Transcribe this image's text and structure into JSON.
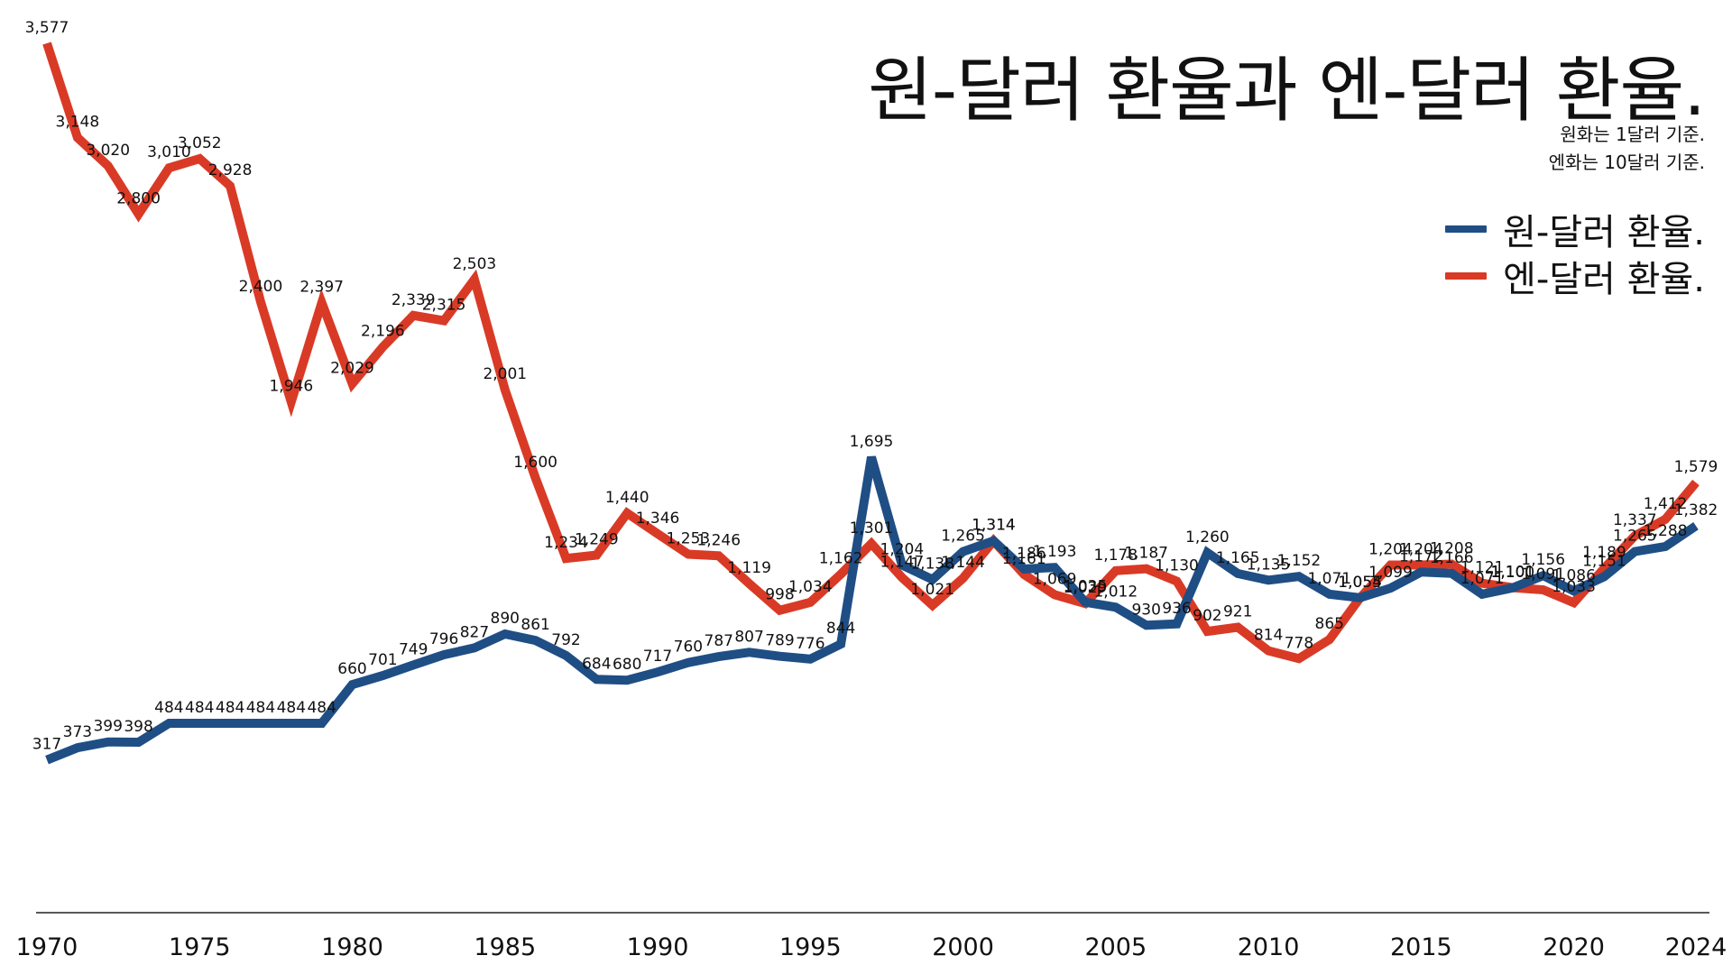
{
  "chart_data": {
    "type": "line",
    "title": "원-달러 환율과 엔-달러 환율.",
    "subtitle_lines": [
      "원화는 1달러 기준.",
      "엔화는 10달러 기준."
    ],
    "x": [
      1970,
      1971,
      1972,
      1973,
      1974,
      1975,
      1976,
      1977,
      1978,
      1979,
      1980,
      1981,
      1982,
      1983,
      1984,
      1985,
      1986,
      1987,
      1988,
      1989,
      1990,
      1991,
      1992,
      1993,
      1994,
      1995,
      1996,
      1997,
      1998,
      1999,
      2000,
      2001,
      2002,
      2003,
      2004,
      2005,
      2006,
      2007,
      2008,
      2009,
      2010,
      2011,
      2012,
      2013,
      2014,
      2015,
      2016,
      2017,
      2018,
      2019,
      2020,
      2021,
      2022,
      2023,
      2024
    ],
    "xticks": [
      1970,
      1975,
      1980,
      1985,
      1990,
      1995,
      2000,
      2005,
      2010,
      2015,
      2020,
      2024
    ],
    "ylim": [
      0,
      3577
    ],
    "grid": false,
    "legend_position": "top-right",
    "series": [
      {
        "name": "원-달러 환율.",
        "color": "#1f4e85",
        "values": [
          317,
          373,
          399,
          398,
          484,
          484,
          484,
          484,
          484,
          484,
          660,
          701,
          749,
          796,
          827,
          890,
          861,
          792,
          684,
          680,
          717,
          760,
          787,
          807,
          789,
          776,
          844,
          1695,
          1204,
          1138,
          1265,
          1314,
          1186,
          1193,
          1035,
          1012,
          930,
          936,
          1260,
          1165,
          1135,
          1152,
          1071,
          1055,
          1099,
          1172,
          1166,
          1071,
          1100,
          1156,
          1086,
          1151,
          1265,
          1288,
          1382
        ],
        "labels": [
          "317",
          "373",
          "399",
          "398",
          "484",
          "484",
          "484",
          "484",
          "484",
          "484",
          "660",
          "701",
          "749",
          "796",
          "827",
          "890",
          "861",
          "792",
          "684",
          "680",
          "717",
          "760",
          "787",
          "807",
          "789",
          "776",
          "844",
          "1,695",
          "1,204",
          "1,138",
          "1,265",
          "1,314",
          "1,186",
          "1,193",
          "1,035",
          "1,012",
          "930",
          "936",
          "1,260",
          "1,165",
          "1,135",
          "1,152",
          "1,071",
          "1,055",
          "1,099",
          "1,172",
          "1,166",
          "1,071",
          "1,100",
          "1,156",
          "1,086",
          "1,151",
          "1,265",
          "1,288",
          "1,382"
        ]
      },
      {
        "name": "엔-달러 환율.",
        "color": "#d93a26",
        "values": [
          3577,
          3148,
          3020,
          2800,
          3010,
          3052,
          2928,
          2400,
          1946,
          2397,
          2029,
          2196,
          2339,
          2315,
          2503,
          2001,
          1600,
          1234,
          1249,
          1440,
          1346,
          1253,
          1246,
          1119,
          998,
          1034,
          1162,
          1301,
          1147,
          1021,
          1144,
          1314,
          1161,
          1069,
          1029,
          1178,
          1187,
          1130,
          902,
          921,
          814,
          778,
          865,
          1054,
          1204,
          1204,
          1208,
          1121,
          1101,
          1091,
          1033,
          1189,
          1337,
          1412,
          1579
        ],
        "labels": [
          "3,577",
          "3,148",
          "3,020",
          "2,800",
          "3,010",
          "3,052",
          "2,928",
          "2,400",
          "1,946",
          "2,397",
          "2,029",
          "2,196",
          "2,339",
          "2,315",
          "2,503",
          "2,001",
          "1,600",
          "1,234",
          "1,249",
          "1,440",
          "1,346",
          "1,253",
          "1,246",
          "1,119",
          "998",
          "1,034",
          "1,162",
          "1,301",
          "1,147",
          "1,021",
          "1,144",
          "1,314",
          "1,161",
          "1,069",
          "1,029",
          "1,178",
          "1,187",
          "1,130",
          "902",
          "921",
          "814",
          "778",
          "865",
          "1,054",
          "1,204",
          "1,204",
          "1,208",
          "1,121",
          "1,101",
          "1,091",
          "1,033",
          "1,189",
          "1,337",
          "1,412",
          "1,579"
        ]
      }
    ]
  }
}
